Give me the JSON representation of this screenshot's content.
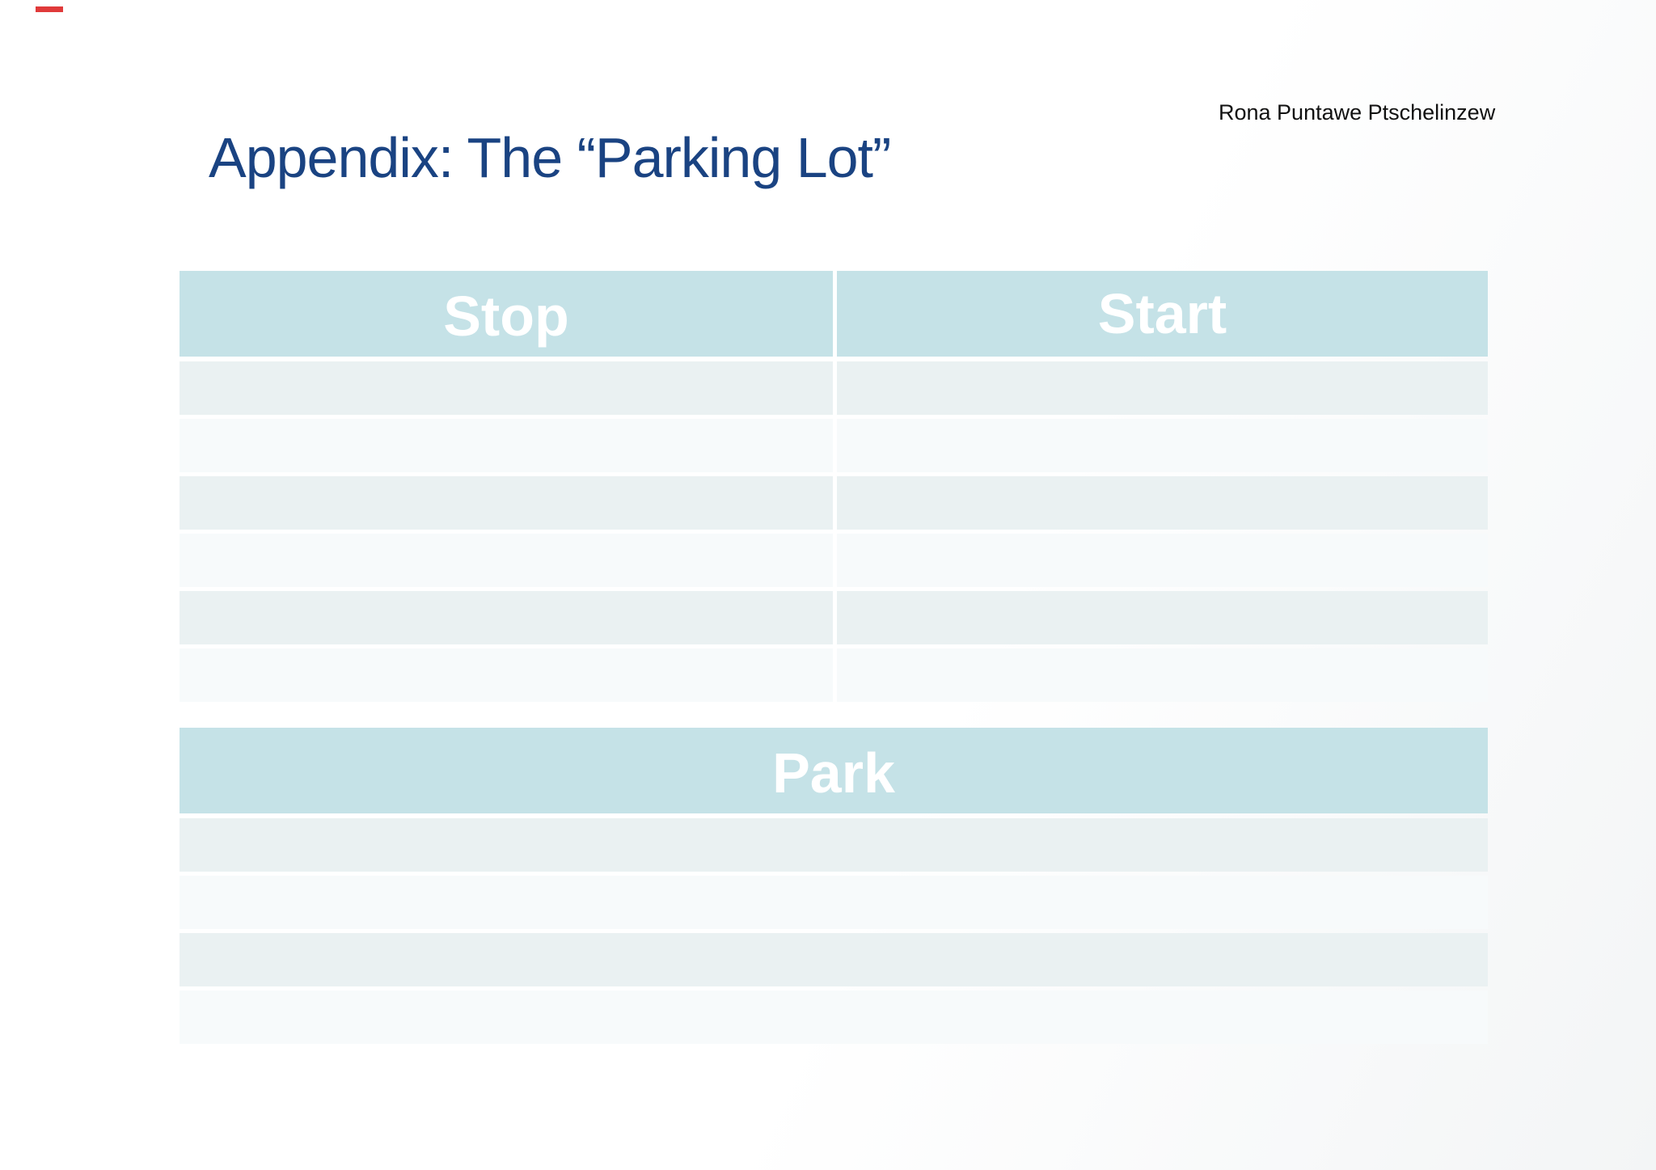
{
  "slide": {
    "title": "Appendix: The “Parking Lot”",
    "author": "Rona Puntawe Ptschelinzew"
  },
  "colors": {
    "title_text": "#1a4382",
    "author_text": "#111111",
    "header_fill": "#c5e2e7",
    "header_text": "#ffffff",
    "row_odd_fill": "#eaf1f2",
    "row_even_fill": "#f7fafb",
    "red_dash_mark": "#e03a3a",
    "background": "#ffffff"
  },
  "stop_start_table": {
    "headers": [
      "Stop",
      "Start"
    ],
    "rows": [
      [
        "",
        ""
      ],
      [
        "",
        ""
      ],
      [
        "",
        ""
      ],
      [
        "",
        ""
      ],
      [
        "",
        ""
      ],
      [
        "",
        ""
      ]
    ]
  },
  "park_table": {
    "header": "Park",
    "rows": [
      [
        ""
      ],
      [
        ""
      ],
      [
        ""
      ],
      [
        ""
      ]
    ]
  }
}
